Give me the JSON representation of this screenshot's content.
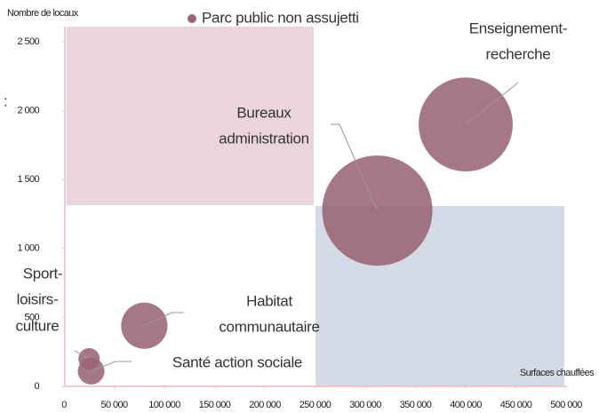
{
  "chart_data": {
    "type": "bubble",
    "y_axis_label": "Nombre de locaux",
    "x_axis_label": "Surfaces chauffées",
    "side_mark": ":",
    "series": [
      {
        "name": "Parc public non assujetti",
        "color": "#9a6474",
        "x": [
          400000,
          312000,
          80000,
          25000,
          27000
        ],
        "values": [
          1900,
          1275,
          440,
          200,
          110
        ],
        "sizes": [
          2800,
          3850,
          680,
          145,
          225
        ],
        "labels": [
          [
            "Enseignement-",
            "recherche"
          ],
          [
            "Bureaux",
            "administration"
          ],
          [
            "Habitat",
            "communautaire"
          ],
          [
            "Sport-",
            "loisirs-",
            "culture"
          ],
          [
            "Santé action sociale"
          ]
        ]
      }
    ],
    "xlim": [
      0,
      500000
    ],
    "ylim": [
      0,
      2500
    ],
    "xticks": [
      0,
      {
        "value": 50000,
        "label": "50 000"
      },
      {
        "value": 100000,
        "label": "100 000"
      },
      {
        "value": 150000,
        "label": "150 000"
      },
      {
        "value": 200000,
        "label": "200 000"
      },
      {
        "value": 250000,
        "label": "250 000"
      },
      {
        "value": 300000,
        "label": "300 000"
      },
      {
        "value": 350000,
        "label": "350 000"
      },
      {
        "value": 400000,
        "label": "400 000"
      },
      {
        "value": 450000,
        "label": "450 000"
      },
      {
        "value": 500000,
        "label": "500 000"
      }
    ],
    "yticks": [
      0,
      500,
      {
        "value": 1000,
        "label": "1 000"
      },
      {
        "value": 1500,
        "label": "1 500"
      },
      {
        "value": 2000,
        "label": "2 000"
      },
      {
        "value": 2500,
        "label": "2 500"
      }
    ],
    "legend": "top"
  }
}
